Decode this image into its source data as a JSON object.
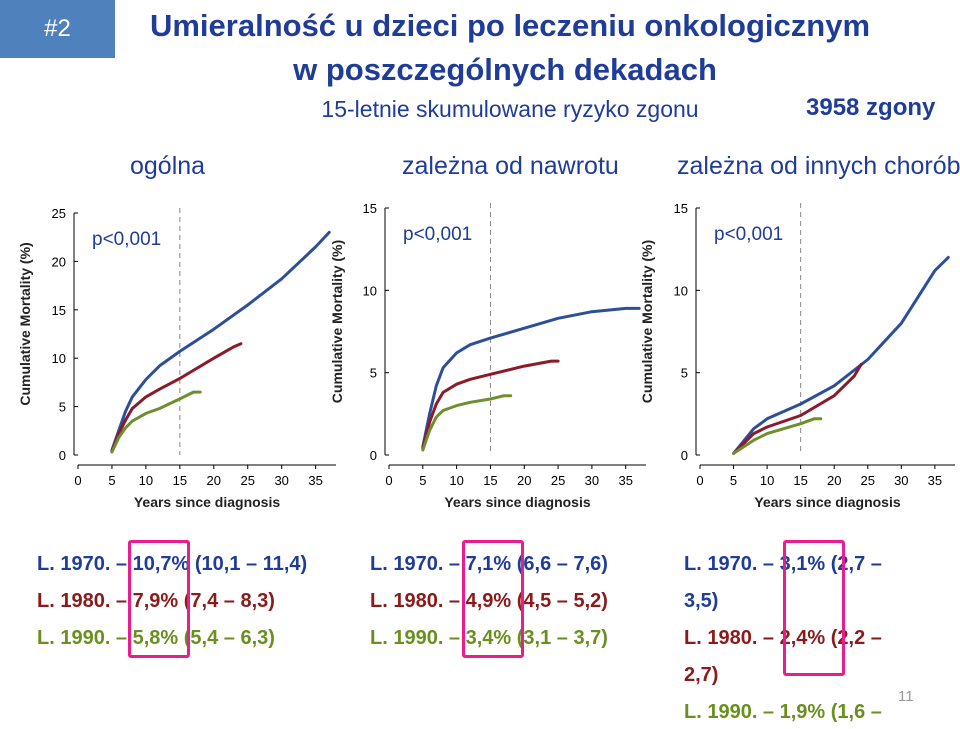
{
  "badge": "#2",
  "title_line1": "Umieralność u dzieci po leczeniu onkologicznym",
  "title_line2": "w poszczególnych dekadach",
  "subtitle": "15-letnie skumulowane ryzyko zgonu",
  "deaths": "3958 zgony",
  "panel_headers": [
    "ogólna",
    "zależna od nawrotu",
    "zależna od innych chorób"
  ],
  "stats": {
    "panel1": [
      "L. 1970. – 10,7% (10,1 – 11,4)",
      "L. 1980. – 7,9% (7,4 – 8,3)",
      "L. 1990. – 5,8% (5,4 – 6,3)"
    ],
    "panel2": [
      "L. 1970. – 7,1% (6,6 – 7,6)",
      "L. 1980. – 4,9% (4,5 – 5,2)",
      "L. 1990. – 3,4% (3,1 – 3,7)"
    ],
    "panel3": [
      "L. 1970. – 3,1% (2,7 –",
      "3,5)",
      "L. 1980. – 2,4% (2,2 –",
      "2,7)",
      "L. 1990. – 1,9% (1,6 –"
    ]
  },
  "page_number": "11",
  "colors": {
    "1970": "#2d4f9a",
    "1980": "#8b1a2a",
    "1990": "#6e8f2f",
    "highlight": "#e91e8c"
  },
  "chart_data": [
    {
      "type": "line",
      "annotation": "p<0,001",
      "xlabel": "Years since diagnosis",
      "ylabel": "Cumulative Mortality (%)",
      "xlim": [
        0,
        38
      ],
      "ylim": [
        0,
        25
      ],
      "xticks": [
        0,
        5,
        10,
        15,
        20,
        25,
        30,
        35
      ],
      "yticks": [
        0,
        5,
        10,
        15,
        20,
        25
      ],
      "reference_line_x": 15,
      "series": [
        {
          "x": [
            5,
            6,
            7,
            8,
            10,
            12,
            15,
            20,
            25,
            30,
            35,
            37
          ],
          "values": [
            0.5,
            2.5,
            4.5,
            6.0,
            7.8,
            9.2,
            10.7,
            13.0,
            15.5,
            18.2,
            21.5,
            23.0
          ]
        },
        {
          "x": [
            5,
            6,
            7,
            8,
            10,
            12,
            15,
            20,
            23,
            24
          ],
          "values": [
            0.4,
            2.2,
            3.6,
            4.8,
            6.0,
            6.8,
            7.9,
            10.0,
            11.2,
            11.5
          ]
        },
        {
          "x": [
            5,
            6,
            7,
            8,
            10,
            12,
            15,
            17,
            18
          ],
          "values": [
            0.3,
            1.8,
            2.8,
            3.5,
            4.3,
            4.8,
            5.8,
            6.5,
            6.5
          ]
        }
      ]
    },
    {
      "type": "line",
      "annotation": "p<0,001",
      "xlabel": "Years since diagnosis",
      "ylabel": "Cumulative Mortality (%)",
      "xlim": [
        0,
        38
      ],
      "ylim": [
        0,
        15
      ],
      "xticks": [
        0,
        5,
        10,
        15,
        20,
        25,
        30,
        35
      ],
      "yticks": [
        0,
        5,
        10,
        15
      ],
      "reference_line_x": 15,
      "series": [
        {
          "x": [
            5,
            6,
            7,
            8,
            10,
            12,
            15,
            20,
            25,
            30,
            35,
            37
          ],
          "values": [
            0.5,
            2.5,
            4.2,
            5.3,
            6.2,
            6.7,
            7.1,
            7.7,
            8.3,
            8.7,
            8.9,
            8.9
          ]
        },
        {
          "x": [
            5,
            6,
            7,
            8,
            10,
            12,
            15,
            20,
            24,
            25
          ],
          "values": [
            0.4,
            2.0,
            3.1,
            3.8,
            4.3,
            4.6,
            4.9,
            5.4,
            5.7,
            5.7
          ]
        },
        {
          "x": [
            5,
            6,
            7,
            8,
            10,
            12,
            15,
            17,
            18
          ],
          "values": [
            0.3,
            1.5,
            2.3,
            2.7,
            3.0,
            3.2,
            3.4,
            3.6,
            3.6
          ]
        }
      ]
    },
    {
      "type": "line",
      "annotation": "p<0,001",
      "xlabel": "Years since diagnosis",
      "ylabel": "Cumulative Mortality (%)",
      "xlim": [
        0,
        38
      ],
      "ylim": [
        0,
        15
      ],
      "xticks": [
        0,
        5,
        10,
        15,
        20,
        25,
        30,
        35
      ],
      "yticks": [
        0,
        5,
        10,
        15
      ],
      "reference_line_x": 15,
      "series": [
        {
          "x": [
            5,
            8,
            10,
            15,
            20,
            25,
            30,
            35,
            37
          ],
          "values": [
            0.1,
            1.6,
            2.2,
            3.1,
            4.2,
            5.8,
            8.0,
            11.2,
            12.0
          ]
        },
        {
          "x": [
            5,
            8,
            10,
            15,
            20,
            23,
            24
          ],
          "values": [
            0.1,
            1.3,
            1.7,
            2.4,
            3.6,
            4.8,
            5.5
          ]
        },
        {
          "x": [
            5,
            8,
            10,
            15,
            17,
            18
          ],
          "values": [
            0.1,
            0.9,
            1.3,
            1.9,
            2.2,
            2.2
          ]
        }
      ]
    }
  ]
}
